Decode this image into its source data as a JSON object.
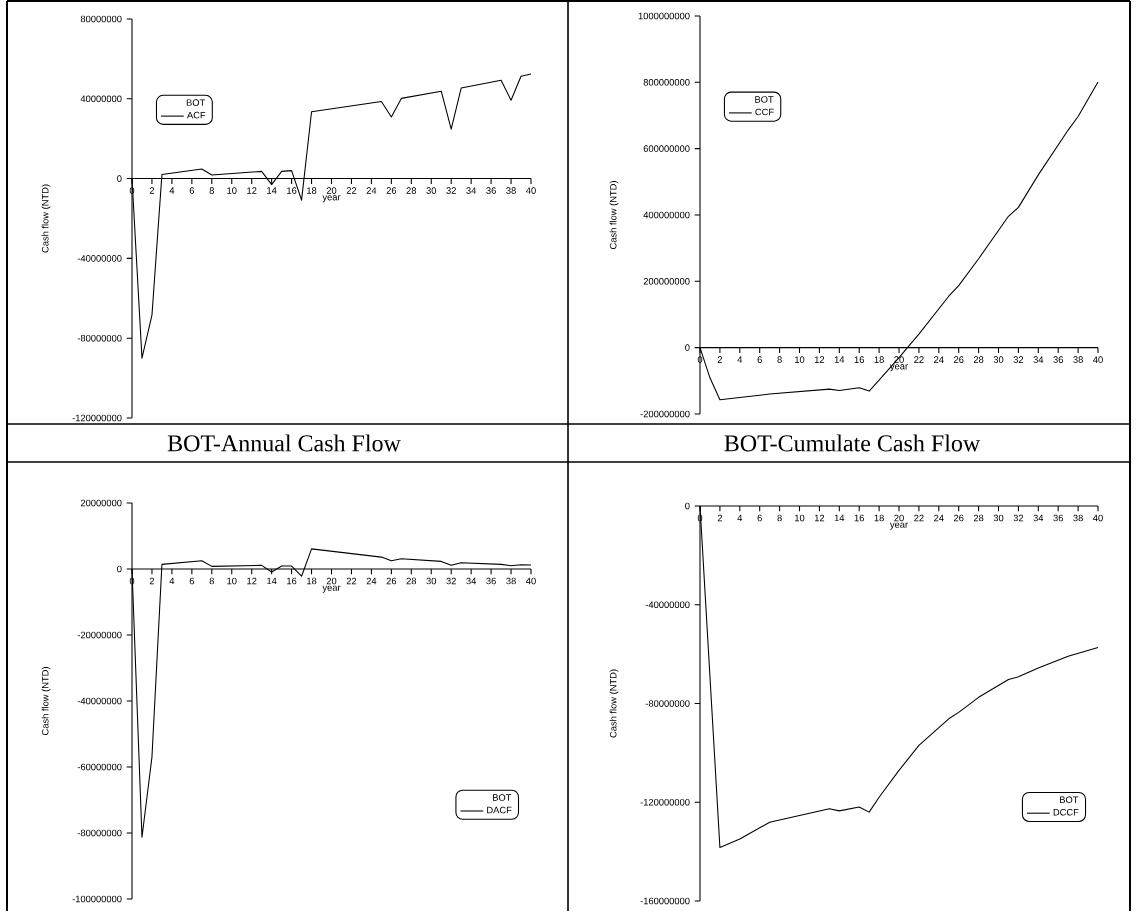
{
  "chart_data": [
    {
      "type": "line",
      "title": "BOT-Annual Cash Flow",
      "xlabel": "year",
      "ylabel": "Cash flow (NTD)",
      "legend_title": "BOT",
      "legend": "top left",
      "x": [
        0,
        1,
        2,
        3,
        7,
        8,
        13,
        14,
        15,
        16,
        17,
        18,
        25,
        26,
        27,
        31,
        32,
        33,
        37,
        38,
        39,
        40
      ],
      "series": [
        {
          "name": "ACF",
          "color": "#000000",
          "values": [
            0,
            -90000000,
            -68500000,
            2000000,
            4800000,
            1800000,
            3600000,
            -3000000,
            3600000,
            4000000,
            -10800000,
            33500000,
            38600000,
            30900000,
            40200000,
            43800000,
            24800000,
            45400000,
            49300000,
            39300000,
            51300000,
            52400000
          ]
        }
      ],
      "xlim": [
        0,
        40
      ],
      "ylim": [
        -120000000,
        80000000
      ],
      "xticks": [
        0,
        2,
        4,
        6,
        8,
        10,
        12,
        14,
        16,
        18,
        20,
        22,
        24,
        26,
        28,
        30,
        32,
        34,
        36,
        38,
        40
      ],
      "yticks": [
        -120000000,
        -80000000,
        -40000000,
        0,
        40000000,
        80000000
      ]
    },
    {
      "type": "line",
      "title": "BOT-Cumulate Cash Flow",
      "xlabel": "year",
      "ylabel": "Cash flow (NTD)",
      "legend_title": "BOT",
      "legend": "top left",
      "x": [
        0,
        1,
        2,
        7,
        13,
        14,
        16,
        17,
        18,
        20,
        22,
        25,
        26,
        28,
        31,
        32,
        34,
        37,
        38,
        40
      ],
      "series": [
        {
          "name": "CCF",
          "color": "#000000",
          "values": [
            0,
            -91000000,
            -157000000,
            -140000000,
            -125000000,
            -129000000,
            -121000000,
            -131000000,
            -98000000,
            -30000000,
            41000000,
            155000000,
            187000000,
            268000000,
            396000000,
            423000000,
            521000000,
            656000000,
            697000000,
            801000000
          ]
        }
      ],
      "xlim": [
        0,
        40
      ],
      "ylim": [
        -200000000,
        1000000000
      ],
      "xticks": [
        0,
        2,
        4,
        6,
        8,
        10,
        12,
        14,
        16,
        18,
        20,
        22,
        24,
        26,
        28,
        30,
        32,
        34,
        36,
        38,
        40
      ],
      "yticks": [
        -200000000,
        0,
        200000000,
        400000000,
        600000000,
        800000000,
        1000000000
      ]
    },
    {
      "type": "line",
      "xlabel": "year",
      "ylabel": "Cash flow (NTD)",
      "legend_title": "BOT",
      "legend": "bottom right",
      "x": [
        0,
        1,
        2,
        3,
        7,
        8,
        13,
        14,
        15,
        16,
        17,
        18,
        25,
        26,
        27,
        31,
        32,
        33,
        37,
        38,
        39,
        40
      ],
      "series": [
        {
          "name": "DACF",
          "color": "#000000",
          "values": [
            0,
            -81300000,
            -57000000,
            1400000,
            2500000,
            800000,
            1100000,
            -900000,
            900000,
            900000,
            -2200000,
            6100000,
            3600000,
            2500000,
            3100000,
            2300000,
            1100000,
            1900000,
            1400000,
            1000000,
            1300000,
            1200000
          ]
        }
      ],
      "xlim": [
        0,
        40
      ],
      "ylim": [
        -100000000,
        20000000
      ],
      "xticks": [
        0,
        2,
        4,
        6,
        8,
        10,
        12,
        14,
        16,
        18,
        20,
        22,
        24,
        26,
        28,
        30,
        32,
        34,
        36,
        38,
        40
      ],
      "yticks": [
        -100000000,
        -80000000,
        -60000000,
        -40000000,
        -20000000,
        0,
        20000000
      ]
    },
    {
      "type": "line",
      "xlabel": "year",
      "ylabel": "Cash flow (NTD)",
      "legend_title": "BOT",
      "legend": "bottom right",
      "x": [
        0,
        2,
        4,
        7,
        13,
        14,
        16,
        17,
        18,
        20,
        22,
        25,
        26,
        28,
        31,
        32,
        34,
        37,
        40
      ],
      "series": [
        {
          "name": "DCCF",
          "color": "#000000",
          "values": [
            0,
            -138300000,
            -134900000,
            -128100000,
            -122600000,
            -123500000,
            -121900000,
            -124000000,
            -118000000,
            -107100000,
            -97000000,
            -86200000,
            -83600000,
            -77500000,
            -70300000,
            -69200000,
            -65600000,
            -60900000,
            -57300000
          ]
        }
      ],
      "xlim": [
        0,
        40
      ],
      "ylim": [
        -160000000,
        0
      ],
      "xticks": [
        0,
        2,
        4,
        6,
        8,
        10,
        12,
        14,
        16,
        18,
        20,
        22,
        24,
        26,
        28,
        30,
        32,
        34,
        36,
        38,
        40
      ],
      "yticks": [
        -160000000,
        -120000000,
        -80000000,
        -40000000,
        0
      ]
    }
  ]
}
